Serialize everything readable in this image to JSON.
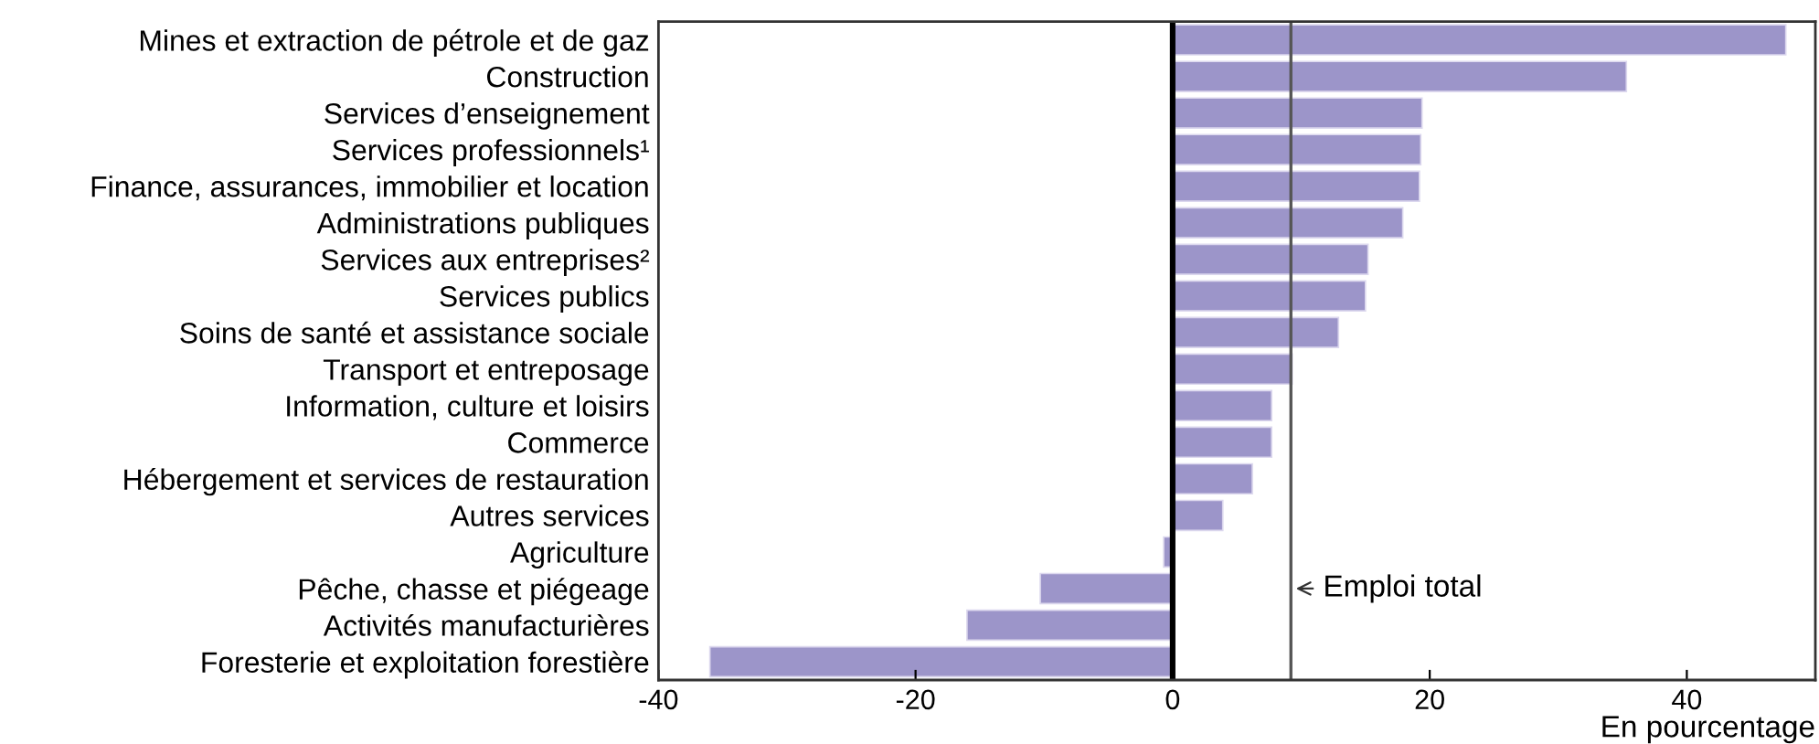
{
  "chart_data": {
    "type": "bar",
    "orientation": "horizontal",
    "categories": [
      "Mines et extraction de pétrole et de gaz",
      "Construction",
      "Services d’enseignement",
      "Services professionnels¹",
      "Finance, assurances, immobilier et location",
      "Administrations publiques",
      "Services aux entreprises²",
      "Services publics",
      "Soins de santé et assistance sociale",
      "Transport et entreposage",
      "Information, culture et loisirs",
      "Commerce",
      "Hébergement et services de restauration",
      "Autres services",
      "Agriculture",
      "Pêche, chasse et piégeage",
      "Activités manufacturières",
      "Foresterie et exploitation forestière"
    ],
    "series": [
      {
        "color": "#9c95c9",
        "values": [
          47.7,
          35.3,
          19.4,
          19.3,
          19.2,
          17.9,
          15.2,
          15.0,
          12.9,
          9.3,
          7.7,
          7.7,
          6.2,
          3.9,
          -0.7,
          -10.3,
          -16.0,
          -36.0
        ]
      }
    ],
    "xlim": [
      -40,
      50
    ],
    "xticks": [
      -40,
      -20,
      0,
      20,
      40
    ],
    "xlabel": "En pourcentage",
    "ref_lines": [
      {
        "axis": "x",
        "value": 0,
        "color": "#000000"
      },
      {
        "axis": "x",
        "value": 9.2,
        "label": "Emploi total",
        "color": "#555555"
      }
    ],
    "grid": false,
    "legend": false
  }
}
